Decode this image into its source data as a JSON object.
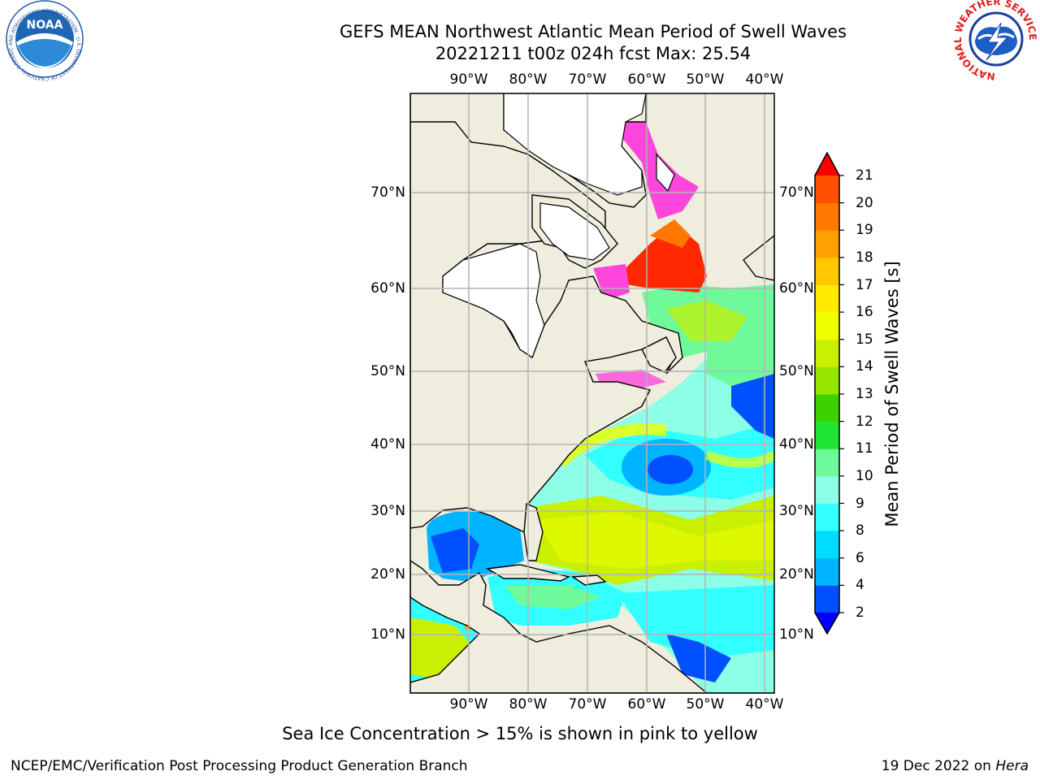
{
  "title_line1": "GEFS MEAN Northwest Atlantic Mean Period of Swell Waves",
  "title_line2": "20221211 t00z 024h fcst   Max: 25.54",
  "logos": {
    "left": {
      "name": "NOAA",
      "text": "NOAA",
      "ring_text": "NATIONAL OCEANIC AND ATMOSPHERIC ADMINISTRATION · U.S. DEPARTMENT OF COMMERCE"
    },
    "right": {
      "name": "National Weather Service",
      "ring_text": "NATIONAL WEATHER SERVICE"
    }
  },
  "map": {
    "lon_labels": [
      "90°W",
      "80°W",
      "70°W",
      "60°W",
      "50°W",
      "40°W"
    ],
    "lat_labels": [
      "70°N",
      "60°N",
      "50°N",
      "40°N",
      "30°N",
      "20°N",
      "10°N"
    ],
    "colors": {
      "land": "#efedde",
      "ocean_high": "#ff2800",
      "grid": "#b4b4b4"
    }
  },
  "colorbar": {
    "label": "Mean Period of Swell Waves [s]",
    "ticks": [
      "2",
      "4",
      "6",
      "8",
      "9",
      "10",
      "11",
      "12",
      "13",
      "14",
      "15",
      "16",
      "17",
      "18",
      "19",
      "20",
      "21"
    ],
    "colors": [
      "#0050ff",
      "#00b4ff",
      "#00dcff",
      "#32ffff",
      "#8cffe6",
      "#6efa9b",
      "#1ee632",
      "#3cd200",
      "#96e600",
      "#c8f000",
      "#f0ff00",
      "#ffeb00",
      "#ffc800",
      "#ffa000",
      "#ff7800",
      "#ff5000",
      "#ff2800"
    ],
    "under_color": "#0000ff",
    "over_color": "#ff0000"
  },
  "footnote": "Sea Ice Concentration > 15% is shown in pink to yellow",
  "footer_left": "NCEP/EMC/Verification Post Processing Product Generation Branch",
  "footer_right_prefix": "19 Dec 2022 on",
  "footer_right_host": "Hera"
}
